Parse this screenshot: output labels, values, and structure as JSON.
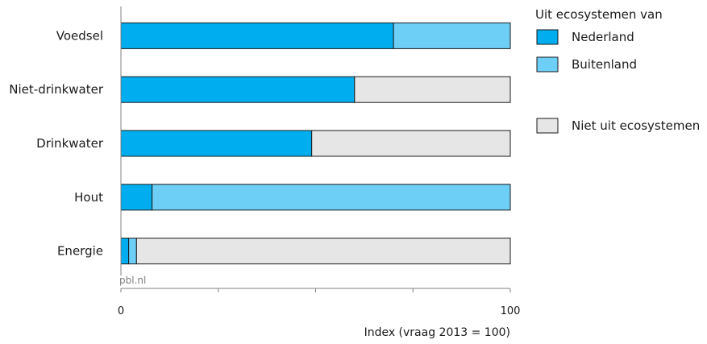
{
  "chart_data": {
    "type": "bar",
    "orientation": "horizontal",
    "stacked": true,
    "categories": [
      "Voedsel",
      "Niet-drinkwater",
      "Drinkwater",
      "Hout",
      "Energie"
    ],
    "series": [
      {
        "name": "Nederland",
        "values": [
          70,
          60,
          49,
          8,
          2
        ],
        "color": "#00aeef"
      },
      {
        "name": "Buitenland",
        "values": [
          30,
          0,
          0,
          92,
          2
        ],
        "color": "#6ecff6"
      },
      {
        "name": "Niet uit ecosystemen",
        "values": [
          0,
          40,
          51,
          0,
          96
        ],
        "color": "#e6e6e6"
      }
    ],
    "xlabel": "Index (vraag 2013 = 100)",
    "xlim": [
      0,
      100
    ],
    "xticks": [
      "0",
      "100"
    ],
    "legend": {
      "title": "Uit ecosystemen van",
      "placement": "right"
    },
    "source": "pbl.nl",
    "grid": false
  }
}
